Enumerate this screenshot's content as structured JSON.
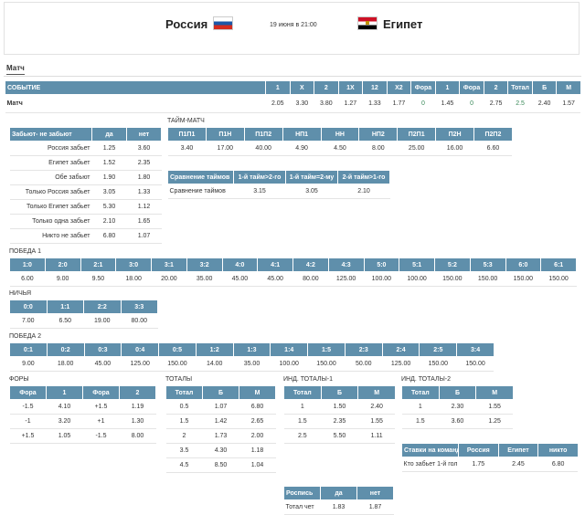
{
  "header": {
    "home": "Россия",
    "date": "19 июня в 21:00",
    "away": "Египет"
  },
  "tab": "Матч",
  "tables": [
    {
      "columns": [
        "СОБЫТИЕ",
        "1",
        "X",
        "2",
        "1X",
        "12",
        "X2",
        "Фора",
        "1",
        "Фора",
        "2",
        "Тотал",
        "Б",
        "М"
      ],
      "rows": [
        [
          "Матч",
          "2.05",
          "3.30",
          "3.80",
          "1.27",
          "1.33",
          "1.77",
          "0",
          "1.45",
          "0",
          "2.75",
          "2.5",
          "2.40",
          "1.57"
        ]
      ]
    },
    {
      "columns": [
        "Забьют- не забьют",
        "да",
        "нет"
      ],
      "rows": [
        [
          "Россия забьет",
          "1.25",
          "3.60"
        ],
        [
          "Египет забьет",
          "1.52",
          "2.35"
        ],
        [
          "Обе забьют",
          "1.90",
          "1.80"
        ],
        [
          "Только Россия забьет",
          "3.05",
          "1.33"
        ],
        [
          "Только Египет забьет",
          "5.30",
          "1.12"
        ],
        [
          "Только одна забьет",
          "2.10",
          "1.65"
        ],
        [
          "Никто не забьет",
          "6.80",
          "1.07"
        ]
      ]
    },
    {
      "title": "ТАЙМ-МАТЧ",
      "columns": [
        "П1П1",
        "П1Н",
        "П1П2",
        "НП1",
        "НН",
        "НП2",
        "П2П1",
        "П2Н",
        "П2П2"
      ],
      "rows": [
        [
          "3.40",
          "17.00",
          "40.00",
          "4.90",
          "4.50",
          "8.00",
          "25.00",
          "16.00",
          "6.60"
        ]
      ]
    },
    {
      "columns": [
        "Сравнение таймов",
        "1-й тайм>2-го",
        "1-й тайм=2-му",
        "2-й тайм>1-го"
      ],
      "rows": [
        [
          "Сравнение таймов",
          "3.15",
          "3.05",
          "2.10"
        ]
      ]
    },
    {
      "title": "ПОБЕДА 1",
      "columns": [
        "1:0",
        "2:0",
        "2:1",
        "3:0",
        "3:1",
        "3:2",
        "4:0",
        "4:1",
        "4:2",
        "4:3",
        "5:0",
        "5:1",
        "5:2",
        "5:3",
        "6:0",
        "6:1"
      ],
      "rows": [
        [
          "6.00",
          "9.00",
          "9.50",
          "18.00",
          "20.00",
          "35.00",
          "45.00",
          "45.00",
          "80.00",
          "125.00",
          "100.00",
          "100.00",
          "150.00",
          "150.00",
          "150.00",
          "150.00"
        ]
      ]
    },
    {
      "title": "НИЧЬЯ",
      "columns": [
        "0:0",
        "1:1",
        "2:2",
        "3:3"
      ],
      "rows": [
        [
          "7.00",
          "6.50",
          "19.00",
          "80.00"
        ]
      ]
    },
    {
      "title": "ПОБЕДА 2",
      "columns": [
        "0:1",
        "0:2",
        "0:3",
        "0:4",
        "0:5",
        "1:2",
        "1:3",
        "1:4",
        "1:5",
        "2:3",
        "2:4",
        "2:5",
        "3:4"
      ],
      "rows": [
        [
          "9.00",
          "18.00",
          "45.00",
          "125.00",
          "150.00",
          "14.00",
          "35.00",
          "100.00",
          "150.00",
          "50.00",
          "125.00",
          "150.00",
          "150.00"
        ]
      ]
    },
    {
      "title": "ФОРЫ",
      "columns": [
        "Фора",
        "1",
        "Фора",
        "2"
      ],
      "rows": [
        [
          "-1.5",
          "4.10",
          "+1.5",
          "1.19"
        ],
        [
          "-1",
          "3.20",
          "+1",
          "1.30"
        ],
        [
          "+1.5",
          "1.05",
          "-1.5",
          "8.00"
        ]
      ]
    },
    {
      "title": "ТОТАЛЫ",
      "columns": [
        "Тотал",
        "Б",
        "М"
      ],
      "rows": [
        [
          "0.5",
          "1.07",
          "6.80"
        ],
        [
          "1.5",
          "1.42",
          "2.65"
        ],
        [
          "2",
          "1.73",
          "2.00"
        ],
        [
          "3.5",
          "4.30",
          "1.18"
        ],
        [
          "4.5",
          "8.50",
          "1.04"
        ]
      ]
    },
    {
      "title": "ИНД. ТОТАЛЫ-1",
      "columns": [
        "Тотал",
        "Б",
        "М"
      ],
      "rows": [
        [
          "1",
          "1.50",
          "2.40"
        ],
        [
          "1.5",
          "2.35",
          "1.55"
        ],
        [
          "2.5",
          "5.50",
          "1.11"
        ]
      ]
    },
    {
      "title": "ИНД. ТОТАЛЫ-2",
      "columns": [
        "Тотал",
        "Б",
        "М"
      ],
      "rows": [
        [
          "1",
          "2.30",
          "1.55"
        ],
        [
          "1.5",
          "3.60",
          "1.25"
        ]
      ]
    },
    {
      "columns": [
        "Ставки на команды",
        "Россия",
        "Египет",
        "никто"
      ],
      "rows": [
        [
          "Кто забьет 1-й гол",
          "1.75",
          "2.45",
          "6.80"
        ]
      ]
    },
    {
      "columns": [
        "Роспись",
        "да",
        "нет"
      ],
      "rows": [
        [
          "Тотал чет",
          "1.83",
          "1.87"
        ]
      ]
    }
  ]
}
